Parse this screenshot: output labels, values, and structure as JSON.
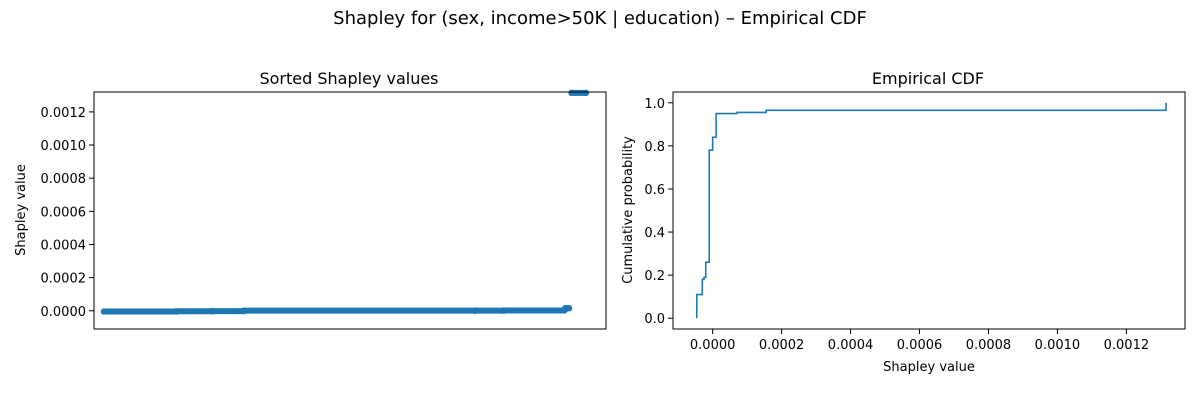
{
  "figure": {
    "title": "Shapley for (sex, income>50K | education) – Empirical CDF"
  },
  "chart_data": [
    {
      "type": "scatter",
      "title": "Sorted Shapley values",
      "xlabel": "",
      "ylabel": "Shapley value",
      "x_ticks_visible": false,
      "ylim": [
        -0.00011,
        0.00132
      ],
      "yticks": [
        0.0,
        0.0002,
        0.0004,
        0.0006,
        0.0008,
        0.001,
        0.0012
      ],
      "ytick_labels": [
        "0.0000",
        "0.0002",
        "0.0004",
        "0.0006",
        "0.0008",
        "0.0010",
        "0.0012"
      ],
      "color": "#1f77b4",
      "series": [
        {
          "points": [
            [
              0.0,
              -4.5e-06
            ],
            [
              0.15,
              -4.5e-06
            ],
            [
              0.15,
              -3e-06
            ],
            [
              0.225,
              -3e-06
            ],
            [
              0.225,
              -2e-06
            ],
            [
              0.29,
              -2e-06
            ],
            [
              0.29,
              5e-07
            ],
            [
              0.77,
              5e-07
            ],
            [
              0.77,
              1e-06
            ],
            [
              0.83,
              1e-06
            ],
            [
              0.83,
              2e-06
            ],
            [
              0.955,
              2e-06
            ],
            [
              0.956,
              7e-06
            ],
            [
              0.957,
              1.55e-05
            ],
            [
              0.96,
              1.55e-05
            ],
            [
              0.965,
              1.55e-05
            ],
            [
              0.97,
              0.001315
            ],
            [
              1.0,
              0.001315
            ]
          ]
        }
      ]
    },
    {
      "type": "line",
      "title": "Empirical CDF",
      "xlabel": "Shapley value",
      "ylabel": "Cumulative probability",
      "xlim": [
        -0.000115,
        0.00137
      ],
      "ylim": [
        -0.05,
        1.05
      ],
      "xticks": [
        0.0,
        0.0002,
        0.0004,
        0.0006,
        0.0008,
        0.001,
        0.0012
      ],
      "xtick_labels": [
        "0.0000",
        "0.0002",
        "0.0004",
        "0.0006",
        "0.0008",
        "0.0010",
        "0.0012"
      ],
      "yticks": [
        0.0,
        0.2,
        0.4,
        0.6,
        0.8,
        1.0
      ],
      "ytick_labels": [
        "0.0",
        "0.2",
        "0.4",
        "0.6",
        "0.8",
        "1.0"
      ],
      "color": "#1f77b4",
      "series": [
        {
          "step_points": [
            [
              -4.6e-05,
              0.0
            ],
            [
              -4.6e-05,
              0.11
            ],
            [
              -3e-05,
              0.11
            ],
            [
              -3e-05,
              0.18
            ],
            [
              -2.5e-05,
              0.18
            ],
            [
              -2.5e-05,
              0.19
            ],
            [
              -2e-05,
              0.19
            ],
            [
              -2e-05,
              0.26
            ],
            [
              -1e-05,
              0.26
            ],
            [
              -1e-05,
              0.78
            ],
            [
              0.0,
              0.78
            ],
            [
              0.0,
              0.84
            ],
            [
              1e-05,
              0.84
            ],
            [
              1e-05,
              0.95
            ],
            [
              7e-05,
              0.95
            ],
            [
              7e-05,
              0.955
            ],
            [
              0.000155,
              0.955
            ],
            [
              0.000155,
              0.965
            ],
            [
              0.001315,
              0.965
            ],
            [
              0.001315,
              1.0
            ]
          ]
        }
      ]
    }
  ]
}
